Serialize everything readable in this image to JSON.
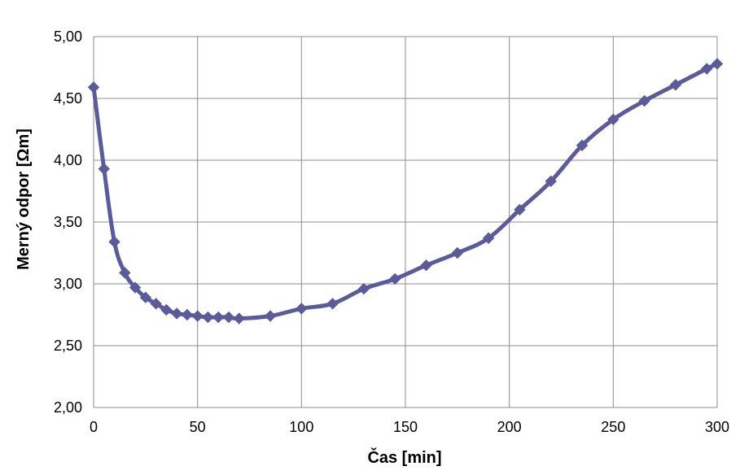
{
  "chart_data": {
    "type": "line",
    "xlabel": "Čas [min]",
    "ylabel": "Merný odpor [Ωm]",
    "xlim": [
      0,
      300
    ],
    "ylim": [
      2.0,
      5.0
    ],
    "x_ticks": [
      0,
      50,
      100,
      150,
      200,
      250,
      300
    ],
    "x_tick_labels": [
      "0",
      "50",
      "100",
      "150",
      "200",
      "250",
      "300"
    ],
    "y_ticks": [
      2.0,
      2.5,
      3.0,
      3.5,
      4.0,
      4.5,
      5.0
    ],
    "y_tick_labels": [
      "2,00",
      "2,50",
      "3,00",
      "3,50",
      "4,00",
      "4,50",
      "5,00"
    ],
    "grid": true,
    "series": [
      {
        "x": [
          0,
          5,
          10,
          15,
          20,
          25,
          30,
          35,
          40,
          45,
          50,
          55,
          60,
          65,
          70,
          85,
          100,
          115,
          130,
          145,
          160,
          175,
          190,
          205,
          220,
          235,
          250,
          265,
          280,
          295,
          300
        ],
        "values": [
          4.59,
          3.93,
          3.34,
          3.09,
          2.97,
          2.89,
          2.84,
          2.79,
          2.76,
          2.75,
          2.74,
          2.73,
          2.73,
          2.73,
          2.72,
          2.74,
          2.8,
          2.84,
          2.96,
          3.04,
          3.15,
          3.25,
          3.37,
          3.6,
          3.83,
          4.12,
          4.33,
          4.48,
          4.61,
          4.74,
          4.78
        ],
        "color": "#5B5B9B",
        "marker": "diamond"
      }
    ]
  }
}
